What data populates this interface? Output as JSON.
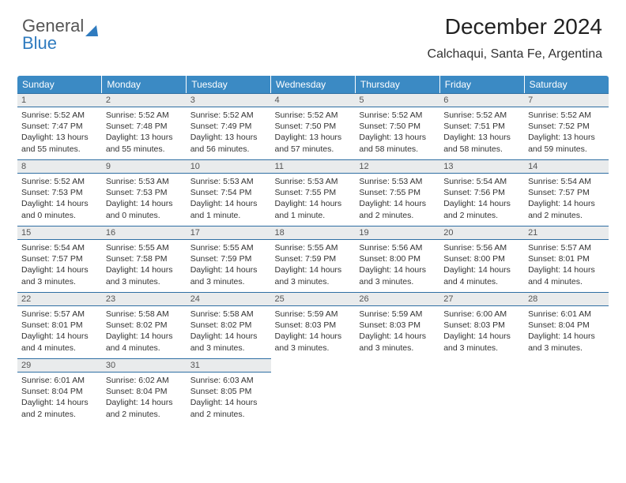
{
  "brand": {
    "part1": "General",
    "part2": "Blue"
  },
  "header": {
    "month_title": "December 2024",
    "location": "Calchaqui, Santa Fe, Argentina"
  },
  "style": {
    "header_bg": "#3b8ac4",
    "header_text": "#ffffff",
    "daynum_bg": "#e9ebec",
    "daynum_border": "#2f6fa3",
    "body_bg": "#ffffff",
    "font_family": "Arial",
    "title_fontsize": 28,
    "day_fontsize": 10.5
  },
  "weekdays": [
    "Sunday",
    "Monday",
    "Tuesday",
    "Wednesday",
    "Thursday",
    "Friday",
    "Saturday"
  ],
  "weeks": [
    [
      {
        "n": "1",
        "sr": "5:52 AM",
        "ss": "7:47 PM",
        "dl": "13 hours and 55 minutes."
      },
      {
        "n": "2",
        "sr": "5:52 AM",
        "ss": "7:48 PM",
        "dl": "13 hours and 55 minutes."
      },
      {
        "n": "3",
        "sr": "5:52 AM",
        "ss": "7:49 PM",
        "dl": "13 hours and 56 minutes."
      },
      {
        "n": "4",
        "sr": "5:52 AM",
        "ss": "7:50 PM",
        "dl": "13 hours and 57 minutes."
      },
      {
        "n": "5",
        "sr": "5:52 AM",
        "ss": "7:50 PM",
        "dl": "13 hours and 58 minutes."
      },
      {
        "n": "6",
        "sr": "5:52 AM",
        "ss": "7:51 PM",
        "dl": "13 hours and 58 minutes."
      },
      {
        "n": "7",
        "sr": "5:52 AM",
        "ss": "7:52 PM",
        "dl": "13 hours and 59 minutes."
      }
    ],
    [
      {
        "n": "8",
        "sr": "5:52 AM",
        "ss": "7:53 PM",
        "dl": "14 hours and 0 minutes."
      },
      {
        "n": "9",
        "sr": "5:53 AM",
        "ss": "7:53 PM",
        "dl": "14 hours and 0 minutes."
      },
      {
        "n": "10",
        "sr": "5:53 AM",
        "ss": "7:54 PM",
        "dl": "14 hours and 1 minute."
      },
      {
        "n": "11",
        "sr": "5:53 AM",
        "ss": "7:55 PM",
        "dl": "14 hours and 1 minute."
      },
      {
        "n": "12",
        "sr": "5:53 AM",
        "ss": "7:55 PM",
        "dl": "14 hours and 2 minutes."
      },
      {
        "n": "13",
        "sr": "5:54 AM",
        "ss": "7:56 PM",
        "dl": "14 hours and 2 minutes."
      },
      {
        "n": "14",
        "sr": "5:54 AM",
        "ss": "7:57 PM",
        "dl": "14 hours and 2 minutes."
      }
    ],
    [
      {
        "n": "15",
        "sr": "5:54 AM",
        "ss": "7:57 PM",
        "dl": "14 hours and 3 minutes."
      },
      {
        "n": "16",
        "sr": "5:55 AM",
        "ss": "7:58 PM",
        "dl": "14 hours and 3 minutes."
      },
      {
        "n": "17",
        "sr": "5:55 AM",
        "ss": "7:59 PM",
        "dl": "14 hours and 3 minutes."
      },
      {
        "n": "18",
        "sr": "5:55 AM",
        "ss": "7:59 PM",
        "dl": "14 hours and 3 minutes."
      },
      {
        "n": "19",
        "sr": "5:56 AM",
        "ss": "8:00 PM",
        "dl": "14 hours and 3 minutes."
      },
      {
        "n": "20",
        "sr": "5:56 AM",
        "ss": "8:00 PM",
        "dl": "14 hours and 4 minutes."
      },
      {
        "n": "21",
        "sr": "5:57 AM",
        "ss": "8:01 PM",
        "dl": "14 hours and 4 minutes."
      }
    ],
    [
      {
        "n": "22",
        "sr": "5:57 AM",
        "ss": "8:01 PM",
        "dl": "14 hours and 4 minutes."
      },
      {
        "n": "23",
        "sr": "5:58 AM",
        "ss": "8:02 PM",
        "dl": "14 hours and 4 minutes."
      },
      {
        "n": "24",
        "sr": "5:58 AM",
        "ss": "8:02 PM",
        "dl": "14 hours and 3 minutes."
      },
      {
        "n": "25",
        "sr": "5:59 AM",
        "ss": "8:03 PM",
        "dl": "14 hours and 3 minutes."
      },
      {
        "n": "26",
        "sr": "5:59 AM",
        "ss": "8:03 PM",
        "dl": "14 hours and 3 minutes."
      },
      {
        "n": "27",
        "sr": "6:00 AM",
        "ss": "8:03 PM",
        "dl": "14 hours and 3 minutes."
      },
      {
        "n": "28",
        "sr": "6:01 AM",
        "ss": "8:04 PM",
        "dl": "14 hours and 3 minutes."
      }
    ],
    [
      {
        "n": "29",
        "sr": "6:01 AM",
        "ss": "8:04 PM",
        "dl": "14 hours and 2 minutes."
      },
      {
        "n": "30",
        "sr": "6:02 AM",
        "ss": "8:04 PM",
        "dl": "14 hours and 2 minutes."
      },
      {
        "n": "31",
        "sr": "6:03 AM",
        "ss": "8:05 PM",
        "dl": "14 hours and 2 minutes."
      },
      null,
      null,
      null,
      null
    ]
  ],
  "labels": {
    "sunrise": "Sunrise:",
    "sunset": "Sunset:",
    "daylight": "Daylight:"
  }
}
